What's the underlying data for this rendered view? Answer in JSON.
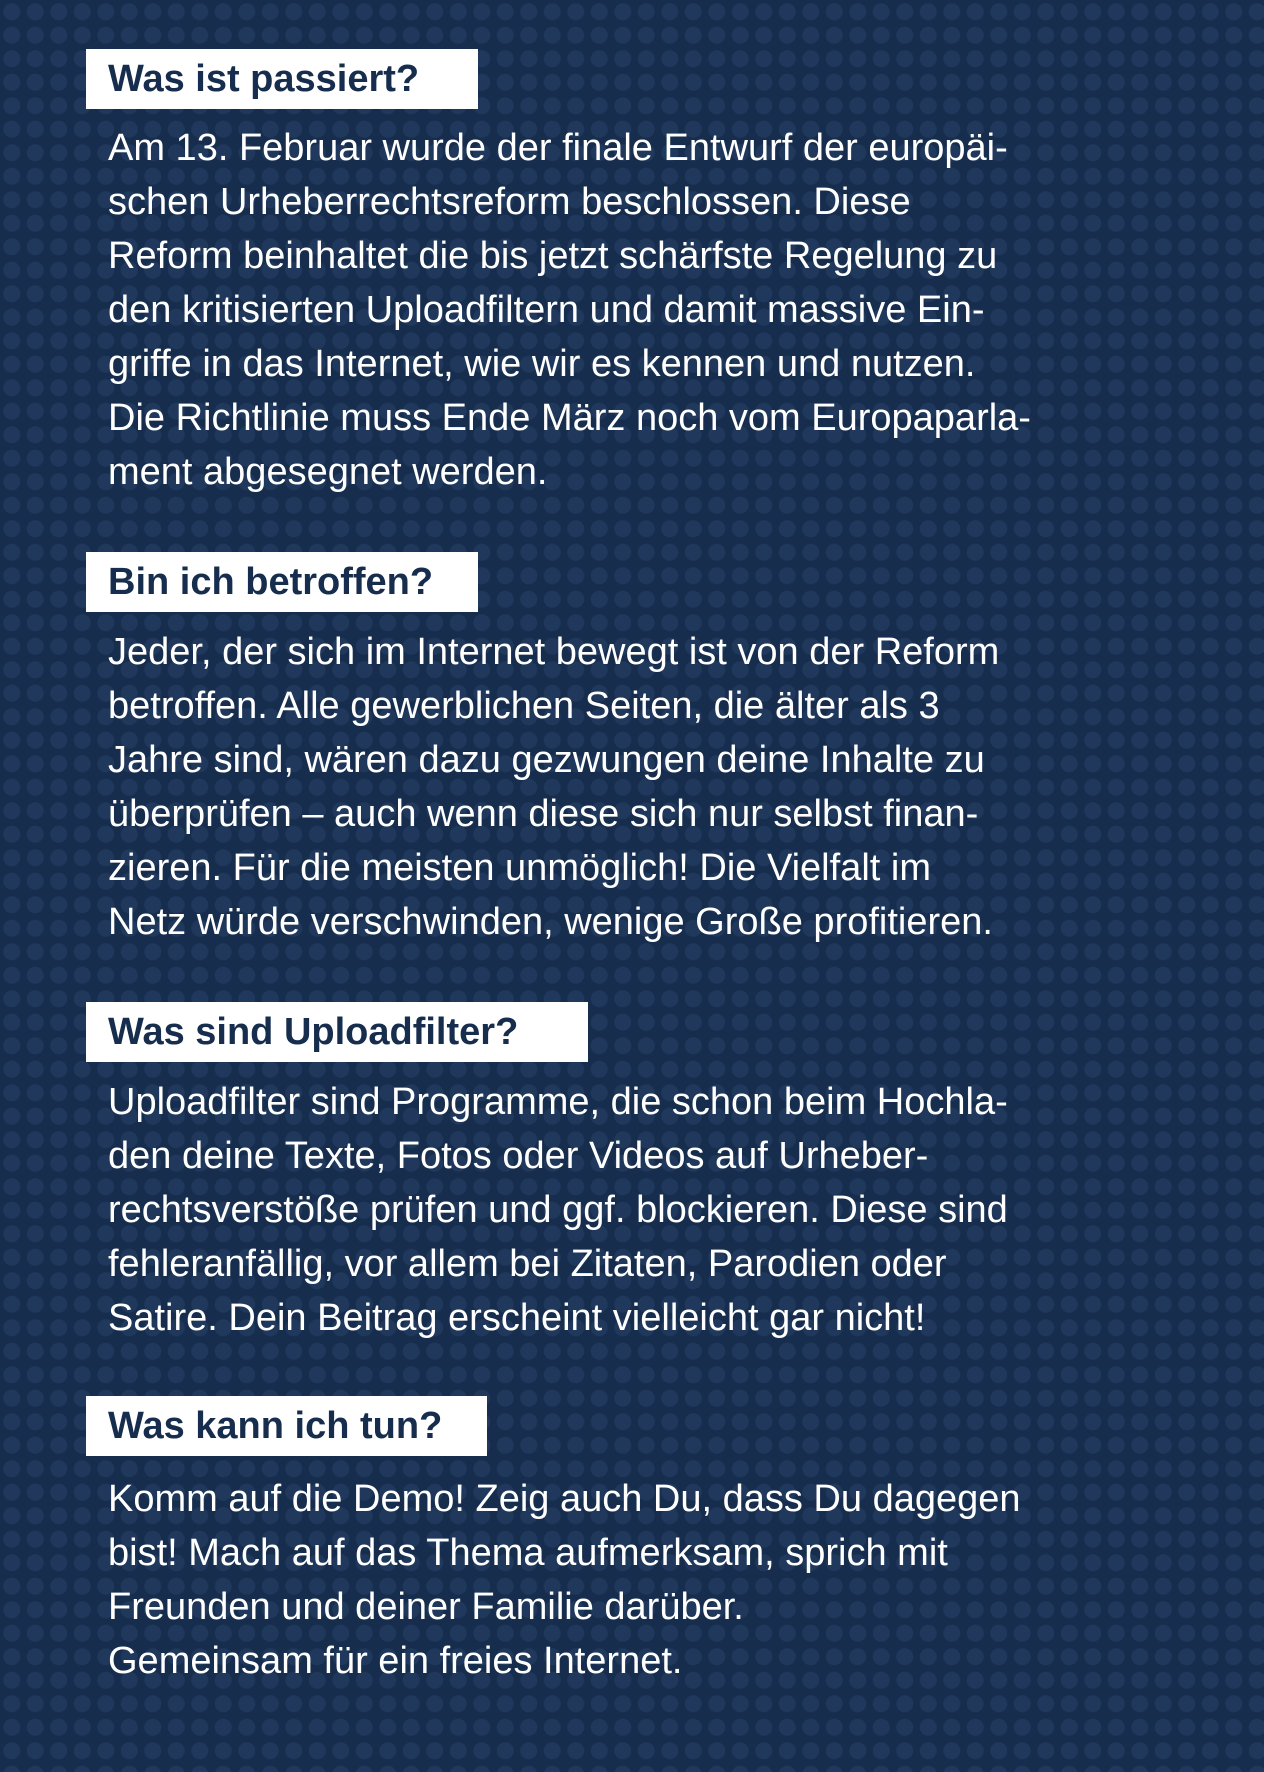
{
  "sections": [
    {
      "heading": "Was ist passiert?",
      "lines": [
        "Am 13. Februar wurde der finale Entwurf der europäi-",
        "schen Urheberrechtsreform beschlossen. Diese",
        "Reform beinhaltet die bis jetzt schärfste Regelung zu",
        "den kritisierten Uploadfiltern und damit massive Ein-",
        "griffe in das Internet, wie wir es kennen und nutzen.",
        "Die Richtlinie muss Ende März noch vom Europaparla-",
        "ment abgesegnet werden."
      ]
    },
    {
      "heading": "Bin ich betroffen?",
      "lines": [
        "Jeder, der sich im Internet bewegt ist von der Reform",
        "betroffen. Alle gewerblichen Seiten, die älter als 3",
        "Jahre sind, wären dazu gezwungen deine Inhalte zu",
        "überprüfen – auch wenn diese sich nur selbst finan-",
        "zieren.  Für die meisten unmöglich! Die Vielfalt im",
        "Netz würde verschwinden, wenige Große profitieren."
      ]
    },
    {
      "heading": "Was sind Uploadfilter?",
      "lines": [
        "Uploadfilter sind Programme, die schon beim Hochla-",
        "den deine Texte, Fotos oder Videos auf Urheber-",
        "rechtsverstöße prüfen und ggf. blockieren. Diese sind",
        "fehleranfällig, vor allem bei Zitaten, Parodien oder",
        "Satire. Dein Beitrag erscheint vielleicht gar nicht!"
      ]
    },
    {
      "heading": "Was kann ich tun?",
      "lines": [
        "Komm auf die Demo! Zeig auch Du, dass Du dagegen",
        "bist! Mach auf das Thema aufmerksam, sprich mit",
        "Freunden und deiner Familie darüber.",
        "Gemeinsam für ein freies Internet."
      ]
    }
  ],
  "colors": {
    "background": "#172d4d",
    "dots": "#203a5e",
    "heading_box": "#ffffff",
    "heading_text": "#172d4d",
    "body_text": "#ffffff"
  }
}
